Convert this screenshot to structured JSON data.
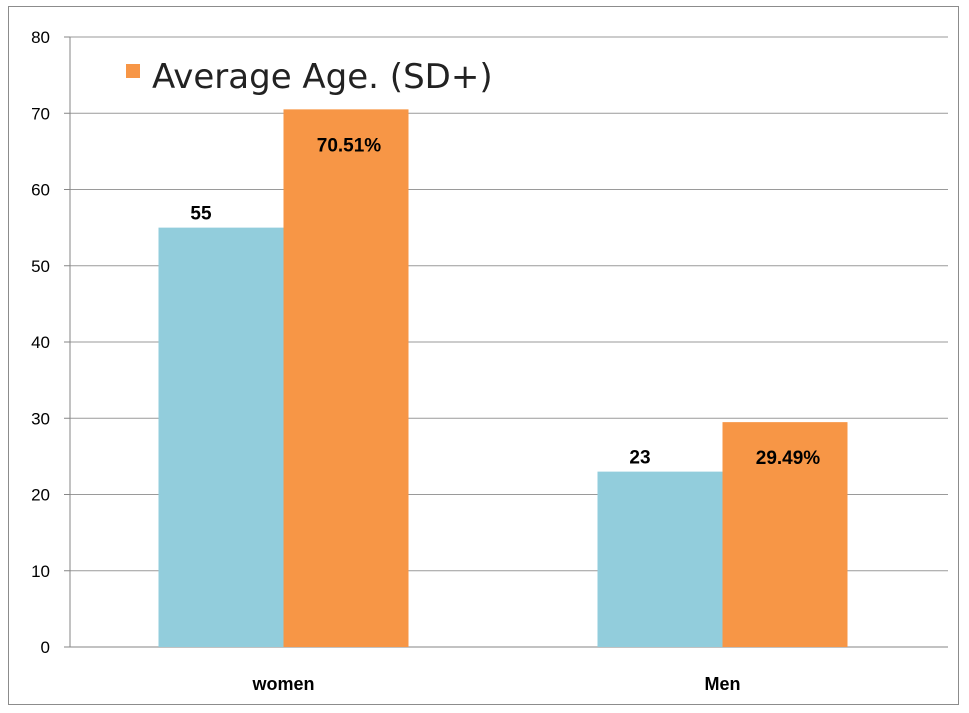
{
  "chart_data": {
    "type": "bar",
    "categories": [
      "women",
      "Men"
    ],
    "series": [
      {
        "name": "",
        "color": "#92cddc",
        "values": [
          55,
          23
        ],
        "labels": [
          "55",
          "23"
        ]
      },
      {
        "name": "Average Age. (SD+)",
        "color": "#f79646",
        "values": [
          70.51,
          29.49
        ],
        "labels": [
          "70.51%",
          "29.49%"
        ]
      }
    ],
    "y_ticks": [
      "0",
      "10",
      "20",
      "30",
      "40",
      "50",
      "60",
      "70",
      "80"
    ],
    "ylim": [
      0,
      80
    ],
    "grid": true,
    "legend": {
      "placement": "top-left",
      "entries": [
        "Average Age. (SD+)"
      ]
    },
    "title": "",
    "xlabel": "",
    "ylabel": ""
  }
}
